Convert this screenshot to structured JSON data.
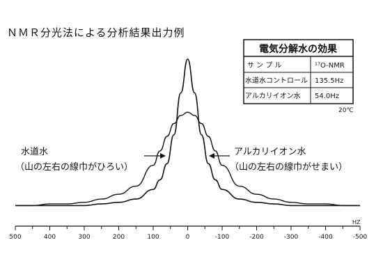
{
  "chart_data": {
    "type": "line",
    "title": "ＮＭＲ分光法による分析結果出力例",
    "xlabel": "",
    "ylabel": "",
    "x_unit": "HZ",
    "xlim": [
      500,
      -500
    ],
    "x_ticks": [
      500,
      400,
      300,
      200,
      100,
      0,
      -100,
      -200,
      -300,
      -400,
      -500
    ],
    "x_tick_labels": [
      "500",
      "400",
      "300",
      "200",
      "100",
      "0",
      "-100",
      "-200",
      "-300",
      "-400",
      "-500"
    ],
    "grid": false,
    "series": [
      {
        "name": "水道水",
        "note": "（山の左右の線巾がひろい）",
        "x": [
          500,
          450,
          400,
          350,
          300,
          250,
          200,
          150,
          100,
          80,
          60,
          40,
          20,
          0,
          -20,
          -40,
          -60,
          -80,
          -100,
          -150,
          -200,
          -250,
          -300,
          -350,
          -400,
          -450,
          -500
        ],
        "y": [
          0.02,
          0.02,
          0.03,
          0.03,
          0.04,
          0.06,
          0.09,
          0.14,
          0.27,
          0.36,
          0.45,
          0.53,
          0.58,
          0.6,
          0.58,
          0.53,
          0.45,
          0.36,
          0.27,
          0.14,
          0.09,
          0.06,
          0.04,
          0.03,
          0.03,
          0.02,
          0.02
        ]
      },
      {
        "name": "アルカリイオン水",
        "note": "（山の左右の線巾がせまい）",
        "x": [
          500,
          450,
          400,
          350,
          300,
          250,
          200,
          150,
          100,
          80,
          60,
          40,
          20,
          0,
          -20,
          -40,
          -60,
          -80,
          -100,
          -150,
          -200,
          -250,
          -300,
          -350,
          -400,
          -450,
          -500
        ],
        "y": [
          0.02,
          0.02,
          0.02,
          0.02,
          0.02,
          0.03,
          0.04,
          0.06,
          0.12,
          0.18,
          0.28,
          0.46,
          0.72,
          0.93,
          0.72,
          0.46,
          0.28,
          0.18,
          0.12,
          0.06,
          0.04,
          0.03,
          0.02,
          0.02,
          0.02,
          0.02,
          0.02
        ]
      }
    ]
  },
  "table": {
    "title": "電気分解水の効果",
    "rows": [
      {
        "label": "サ ン プ ル",
        "value": "¹⁷O-NMR"
      },
      {
        "label": "水道水コントロール",
        "value": "135.5Hz"
      },
      {
        "label": "アルカリイオン水",
        "value": "54.0Hz"
      }
    ]
  },
  "temperature": "20℃"
}
